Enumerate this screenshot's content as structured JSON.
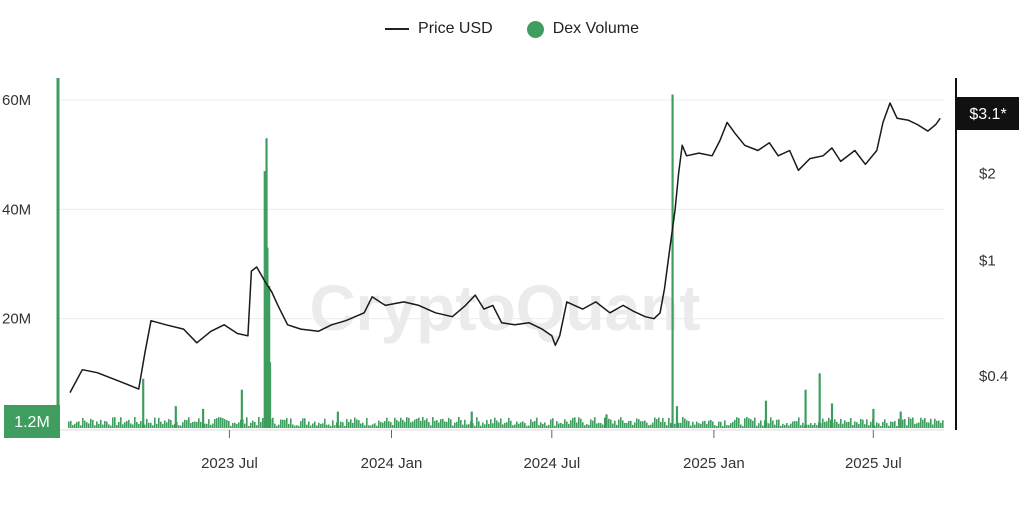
{
  "legend": {
    "price_label": "Price USD",
    "volume_label": "Dex Volume"
  },
  "watermark": "CryptoQuant",
  "colors": {
    "price": "#1a1a1a",
    "volume": "#3f9e5f",
    "grid": "#ececec",
    "badge_bg": "#111111",
    "badge_text": "#ffffff"
  },
  "chart_data": {
    "type": "line",
    "title": "",
    "grid": true,
    "legend_position": "top-center",
    "x_ticks": [
      "2023 Jul",
      "2024 Jan",
      "2024 Jul",
      "2025 Jan",
      "2025 Jul"
    ],
    "left_axis": {
      "ticks": [
        "20M",
        "40M",
        "60M"
      ],
      "ylim": [
        0,
        60000000
      ],
      "current_label": "1.2M"
    },
    "right_axis": {
      "ticks": [
        "$0.4",
        "$1",
        "$2"
      ],
      "scale": "log",
      "current_label": "$3.1*"
    },
    "series": [
      {
        "name": "Price USD",
        "axis": "right",
        "points": [
          [
            "2023-01-01",
            0.35
          ],
          [
            "2023-01-15",
            0.42
          ],
          [
            "2023-02-01",
            0.41
          ],
          [
            "2023-03-01",
            0.38
          ],
          [
            "2023-03-20",
            0.36
          ],
          [
            "2023-03-27",
            0.48
          ],
          [
            "2023-04-03",
            0.62
          ],
          [
            "2023-04-20",
            0.6
          ],
          [
            "2023-05-10",
            0.58
          ],
          [
            "2023-05-25",
            0.52
          ],
          [
            "2023-06-10",
            0.57
          ],
          [
            "2023-06-25",
            0.6
          ],
          [
            "2023-07-10",
            0.56
          ],
          [
            "2023-07-22",
            0.55
          ],
          [
            "2023-07-26",
            0.92
          ],
          [
            "2023-08-01",
            0.95
          ],
          [
            "2023-08-10",
            0.85
          ],
          [
            "2023-08-18",
            0.78
          ],
          [
            "2023-08-25",
            0.7
          ],
          [
            "2023-09-05",
            0.6
          ],
          [
            "2023-09-20",
            0.58
          ],
          [
            "2023-10-10",
            0.57
          ],
          [
            "2023-10-25",
            0.6
          ],
          [
            "2023-11-10",
            0.62
          ],
          [
            "2023-12-01",
            0.66
          ],
          [
            "2023-12-10",
            0.75
          ],
          [
            "2023-12-25",
            0.7
          ],
          [
            "2024-01-15",
            0.72
          ],
          [
            "2024-02-01",
            0.7
          ],
          [
            "2024-02-20",
            0.66
          ],
          [
            "2024-03-10",
            0.64
          ],
          [
            "2024-03-25",
            0.7
          ],
          [
            "2024-04-05",
            0.76
          ],
          [
            "2024-04-15",
            0.68
          ],
          [
            "2024-04-25",
            0.7
          ],
          [
            "2024-05-05",
            0.61
          ],
          [
            "2024-05-20",
            0.6
          ],
          [
            "2024-06-05",
            0.61
          ],
          [
            "2024-06-20",
            0.58
          ],
          [
            "2024-07-01",
            0.55
          ],
          [
            "2024-07-05",
            0.51
          ],
          [
            "2024-07-10",
            0.55
          ],
          [
            "2024-07-18",
            0.72
          ],
          [
            "2024-08-05",
            0.68
          ],
          [
            "2024-08-20",
            0.72
          ],
          [
            "2024-09-05",
            0.66
          ],
          [
            "2024-09-20",
            0.7
          ],
          [
            "2024-10-01",
            0.67
          ],
          [
            "2024-10-15",
            0.64
          ],
          [
            "2024-10-25",
            0.63
          ],
          [
            "2024-11-01",
            0.66
          ],
          [
            "2024-11-06",
            0.8
          ],
          [
            "2024-11-12",
            1.1
          ],
          [
            "2024-11-18",
            1.5
          ],
          [
            "2024-11-22",
            2.0
          ],
          [
            "2024-11-26",
            2.5
          ],
          [
            "2024-12-01",
            2.3
          ],
          [
            "2024-12-15",
            2.35
          ],
          [
            "2024-12-30",
            2.3
          ],
          [
            "2025-01-08",
            2.6
          ],
          [
            "2025-01-16",
            3.0
          ],
          [
            "2025-01-25",
            2.75
          ],
          [
            "2025-02-05",
            2.5
          ],
          [
            "2025-02-20",
            2.4
          ],
          [
            "2025-03-05",
            2.55
          ],
          [
            "2025-03-15",
            2.3
          ],
          [
            "2025-03-28",
            2.4
          ],
          [
            "2025-04-07",
            2.05
          ],
          [
            "2025-04-20",
            2.25
          ],
          [
            "2025-05-05",
            2.3
          ],
          [
            "2025-05-15",
            2.45
          ],
          [
            "2025-05-25",
            2.2
          ],
          [
            "2025-06-10",
            2.4
          ],
          [
            "2025-06-22",
            2.15
          ],
          [
            "2025-07-05",
            2.4
          ],
          [
            "2025-07-12",
            3.0
          ],
          [
            "2025-07-20",
            3.5
          ],
          [
            "2025-07-28",
            3.1
          ],
          [
            "2025-08-10",
            3.05
          ],
          [
            "2025-08-20",
            2.95
          ],
          [
            "2025-09-01",
            2.8
          ],
          [
            "2025-09-10",
            2.95
          ],
          [
            "2025-09-15",
            3.1
          ]
        ]
      },
      {
        "name": "Dex Volume",
        "axis": "left",
        "baseline_volume": 1200000,
        "spikes": [
          [
            "2023-03-25",
            9000000
          ],
          [
            "2023-05-01",
            4000000
          ],
          [
            "2023-06-01",
            3500000
          ],
          [
            "2023-07-15",
            7000000
          ],
          [
            "2023-08-10",
            47000000
          ],
          [
            "2023-08-12",
            53000000
          ],
          [
            "2023-08-13",
            33000000
          ],
          [
            "2023-08-15",
            26000000
          ],
          [
            "2023-08-16",
            12000000
          ],
          [
            "2023-11-01",
            3000000
          ],
          [
            "2024-04-01",
            3000000
          ],
          [
            "2024-09-01",
            2500000
          ],
          [
            "2024-11-15",
            61000000
          ],
          [
            "2024-11-20",
            4000000
          ],
          [
            "2025-03-01",
            5000000
          ],
          [
            "2025-04-15",
            7000000
          ],
          [
            "2025-05-01",
            10000000
          ],
          [
            "2025-05-15",
            4500000
          ],
          [
            "2025-07-01",
            3500000
          ],
          [
            "2025-08-01",
            3000000
          ]
        ]
      }
    ]
  }
}
